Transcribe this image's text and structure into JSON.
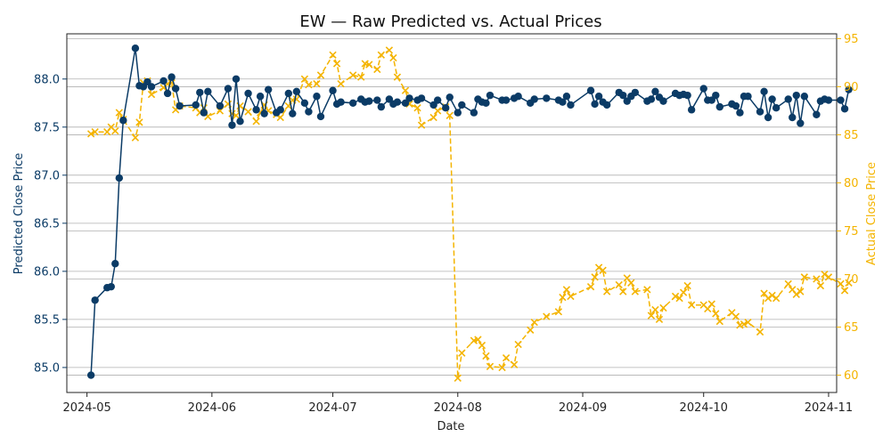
{
  "chart_data": {
    "type": "line",
    "title": "EW — Raw Predicted vs. Actual Prices",
    "xlabel": "Date",
    "x_ticks": [
      "2024-05",
      "2024-06",
      "2024-07",
      "2024-08",
      "2024-09",
      "2024-10",
      "2024-11"
    ],
    "x_tick_dates": [
      "2024-05-01",
      "2024-06-01",
      "2024-07-01",
      "2024-08-01",
      "2024-09-01",
      "2024-10-01",
      "2024-11-01"
    ],
    "xlim": [
      "2024-04-26",
      "2024-11-03"
    ],
    "left_axis": {
      "label": "Predicted Close Price",
      "ticks": [
        "85.0",
        "85.5",
        "86.0",
        "86.5",
        "87.0",
        "87.5",
        "88.0"
      ],
      "tick_values": [
        85.0,
        85.5,
        86.0,
        86.5,
        87.0,
        87.5,
        88.0
      ],
      "ylim": [
        84.74,
        88.47
      ],
      "color": "#0b3b66"
    },
    "right_axis": {
      "label": "Actual Close Price",
      "ticks": [
        "60",
        "65",
        "70",
        "75",
        "80",
        "85",
        "90",
        "95"
      ],
      "tick_values": [
        60,
        65,
        70,
        75,
        80,
        85,
        90,
        95
      ],
      "ylim": [
        58.2,
        95.5
      ],
      "color": "#f4b400"
    },
    "grid": "horizontal",
    "series": [
      {
        "axis": "left",
        "marker": "circle",
        "linestyle": "solid",
        "color": "#0b3b66",
        "points": [
          [
            "2024-05-02",
            84.92
          ],
          [
            "2024-05-03",
            85.7
          ],
          [
            "2024-05-06",
            85.83
          ],
          [
            "2024-05-07",
            85.84
          ],
          [
            "2024-05-08",
            86.08
          ],
          [
            "2024-05-09",
            86.97
          ],
          [
            "2024-05-10",
            87.57
          ],
          [
            "2024-05-13",
            88.32
          ],
          [
            "2024-05-14",
            87.93
          ],
          [
            "2024-05-15",
            87.92
          ],
          [
            "2024-05-16",
            87.97
          ],
          [
            "2024-05-17",
            87.92
          ],
          [
            "2024-05-20",
            87.98
          ],
          [
            "2024-05-21",
            87.85
          ],
          [
            "2024-05-22",
            88.02
          ],
          [
            "2024-05-23",
            87.9
          ],
          [
            "2024-05-24",
            87.72
          ],
          [
            "2024-05-28",
            87.73
          ],
          [
            "2024-05-29",
            87.86
          ],
          [
            "2024-05-30",
            87.65
          ],
          [
            "2024-05-31",
            87.87
          ],
          [
            "2024-06-03",
            87.72
          ],
          [
            "2024-06-05",
            87.9
          ],
          [
            "2024-06-06",
            87.52
          ],
          [
            "2024-06-07",
            88.0
          ],
          [
            "2024-06-08",
            87.56
          ],
          [
            "2024-06-10",
            87.85
          ],
          [
            "2024-06-12",
            87.68
          ],
          [
            "2024-06-13",
            87.82
          ],
          [
            "2024-06-14",
            87.64
          ],
          [
            "2024-06-15",
            87.89
          ],
          [
            "2024-06-17",
            87.65
          ],
          [
            "2024-06-18",
            87.68
          ],
          [
            "2024-06-20",
            87.85
          ],
          [
            "2024-06-21",
            87.64
          ],
          [
            "2024-06-22",
            87.87
          ],
          [
            "2024-06-24",
            87.75
          ],
          [
            "2024-06-25",
            87.66
          ],
          [
            "2024-06-27",
            87.82
          ],
          [
            "2024-06-28",
            87.61
          ],
          [
            "2024-07-01",
            87.88
          ],
          [
            "2024-07-02",
            87.74
          ],
          [
            "2024-07-03",
            87.76
          ],
          [
            "2024-07-06",
            87.75
          ],
          [
            "2024-07-08",
            87.79
          ],
          [
            "2024-07-09",
            87.76
          ],
          [
            "2024-07-10",
            87.77
          ],
          [
            "2024-07-12",
            87.78
          ],
          [
            "2024-07-13",
            87.71
          ],
          [
            "2024-07-15",
            87.79
          ],
          [
            "2024-07-16",
            87.74
          ],
          [
            "2024-07-17",
            87.76
          ],
          [
            "2024-07-19",
            87.75
          ],
          [
            "2024-07-20",
            87.8
          ],
          [
            "2024-07-22",
            87.78
          ],
          [
            "2024-07-23",
            87.8
          ],
          [
            "2024-07-26",
            87.73
          ],
          [
            "2024-07-27",
            87.78
          ],
          [
            "2024-07-29",
            87.7
          ],
          [
            "2024-07-30",
            87.81
          ],
          [
            "2024-08-01",
            87.65
          ],
          [
            "2024-08-02",
            87.73
          ],
          [
            "2024-08-05",
            87.65
          ],
          [
            "2024-08-06",
            87.79
          ],
          [
            "2024-08-07",
            87.76
          ],
          [
            "2024-08-08",
            87.75
          ],
          [
            "2024-08-09",
            87.83
          ],
          [
            "2024-08-12",
            87.78
          ],
          [
            "2024-08-13",
            87.78
          ],
          [
            "2024-08-15",
            87.8
          ],
          [
            "2024-08-16",
            87.82
          ],
          [
            "2024-08-19",
            87.75
          ],
          [
            "2024-08-20",
            87.79
          ],
          [
            "2024-08-23",
            87.8
          ],
          [
            "2024-08-26",
            87.78
          ],
          [
            "2024-08-27",
            87.76
          ],
          [
            "2024-08-28",
            87.82
          ],
          [
            "2024-08-29",
            87.73
          ],
          [
            "2024-09-03",
            87.88
          ],
          [
            "2024-09-04",
            87.74
          ],
          [
            "2024-09-05",
            87.82
          ],
          [
            "2024-09-06",
            87.76
          ],
          [
            "2024-09-07",
            87.73
          ],
          [
            "2024-09-10",
            87.86
          ],
          [
            "2024-09-11",
            87.83
          ],
          [
            "2024-09-12",
            87.77
          ],
          [
            "2024-09-13",
            87.82
          ],
          [
            "2024-09-14",
            87.86
          ],
          [
            "2024-09-17",
            87.77
          ],
          [
            "2024-09-18",
            87.79
          ],
          [
            "2024-09-19",
            87.87
          ],
          [
            "2024-09-20",
            87.81
          ],
          [
            "2024-09-21",
            87.77
          ],
          [
            "2024-09-24",
            87.85
          ],
          [
            "2024-09-25",
            87.83
          ],
          [
            "2024-09-26",
            87.84
          ],
          [
            "2024-09-27",
            87.83
          ],
          [
            "2024-09-28",
            87.68
          ],
          [
            "2024-10-01",
            87.9
          ],
          [
            "2024-10-02",
            87.78
          ],
          [
            "2024-10-03",
            87.78
          ],
          [
            "2024-10-04",
            87.83
          ],
          [
            "2024-10-05",
            87.71
          ],
          [
            "2024-10-08",
            87.74
          ],
          [
            "2024-10-09",
            87.72
          ],
          [
            "2024-10-10",
            87.65
          ],
          [
            "2024-10-11",
            87.82
          ],
          [
            "2024-10-12",
            87.82
          ],
          [
            "2024-10-15",
            87.66
          ],
          [
            "2024-10-16",
            87.87
          ],
          [
            "2024-10-17",
            87.6
          ],
          [
            "2024-10-18",
            87.79
          ],
          [
            "2024-10-19",
            87.7
          ],
          [
            "2024-10-22",
            87.79
          ],
          [
            "2024-10-23",
            87.6
          ],
          [
            "2024-10-24",
            87.83
          ],
          [
            "2024-10-25",
            87.54
          ],
          [
            "2024-10-26",
            87.82
          ],
          [
            "2024-10-29",
            87.63
          ],
          [
            "2024-10-30",
            87.77
          ],
          [
            "2024-10-31",
            87.79
          ],
          [
            "2024-11-01",
            87.78
          ],
          [
            "2024-11-04",
            87.78
          ],
          [
            "2024-11-05",
            87.69
          ],
          [
            "2024-11-06",
            87.89
          ]
        ]
      },
      {
        "axis": "right",
        "marker": "x",
        "linestyle": "dashed",
        "color": "#f4b400",
        "points": [
          [
            "2024-05-02",
            85.1
          ],
          [
            "2024-05-03",
            85.3
          ],
          [
            "2024-05-06",
            85.3
          ],
          [
            "2024-05-07",
            85.8
          ],
          [
            "2024-05-08",
            85.4
          ],
          [
            "2024-05-09",
            87.3
          ],
          [
            "2024-05-10",
            86.6
          ],
          [
            "2024-05-13",
            84.7
          ],
          [
            "2024-05-14",
            86.3
          ],
          [
            "2024-05-15",
            90.4
          ],
          [
            "2024-05-16",
            90.6
          ],
          [
            "2024-05-17",
            89.2
          ],
          [
            "2024-05-20",
            89.9
          ],
          [
            "2024-05-21",
            90.3
          ],
          [
            "2024-05-22",
            90.4
          ],
          [
            "2024-05-23",
            87.6
          ],
          [
            "2024-05-24",
            88.0
          ],
          [
            "2024-05-28",
            87.8
          ],
          [
            "2024-05-29",
            87.3
          ],
          [
            "2024-05-30",
            87.8
          ],
          [
            "2024-05-31",
            86.9
          ],
          [
            "2024-06-03",
            87.5
          ],
          [
            "2024-06-05",
            88.2
          ],
          [
            "2024-06-06",
            87.2
          ],
          [
            "2024-06-07",
            87.0
          ],
          [
            "2024-06-08",
            88.0
          ],
          [
            "2024-06-10",
            87.4
          ],
          [
            "2024-06-12",
            86.4
          ],
          [
            "2024-06-13",
            87.3
          ],
          [
            "2024-06-14",
            88.1
          ],
          [
            "2024-06-15",
            87.5
          ],
          [
            "2024-06-17",
            87.1
          ],
          [
            "2024-06-18",
            86.8
          ],
          [
            "2024-06-20",
            88.0
          ],
          [
            "2024-06-21",
            88.6
          ],
          [
            "2024-06-22",
            88.7
          ],
          [
            "2024-06-24",
            90.8
          ],
          [
            "2024-06-25",
            90.2
          ],
          [
            "2024-06-27",
            90.3
          ],
          [
            "2024-06-28",
            91.2
          ],
          [
            "2024-07-01",
            93.3
          ],
          [
            "2024-07-02",
            92.4
          ],
          [
            "2024-07-03",
            90.3
          ],
          [
            "2024-07-06",
            91.2
          ],
          [
            "2024-07-08",
            91.0
          ],
          [
            "2024-07-09",
            92.4
          ],
          [
            "2024-07-10",
            92.3
          ],
          [
            "2024-07-12",
            91.8
          ],
          [
            "2024-07-13",
            93.3
          ],
          [
            "2024-07-15",
            93.8
          ],
          [
            "2024-07-16",
            93.0
          ],
          [
            "2024-07-17",
            91.0
          ],
          [
            "2024-07-19",
            89.6
          ],
          [
            "2024-07-20",
            88.2
          ],
          [
            "2024-07-22",
            87.8
          ],
          [
            "2024-07-23",
            86.0
          ],
          [
            "2024-07-26",
            86.8
          ],
          [
            "2024-07-27",
            87.5
          ],
          [
            "2024-07-29",
            87.9
          ],
          [
            "2024-07-30",
            87.0
          ],
          [
            "2024-08-01",
            59.7
          ],
          [
            "2024-08-02",
            62.3
          ],
          [
            "2024-08-05",
            63.6
          ],
          [
            "2024-08-06",
            63.7
          ],
          [
            "2024-08-07",
            63.1
          ],
          [
            "2024-08-08",
            62.0
          ],
          [
            "2024-08-09",
            60.9
          ],
          [
            "2024-08-12",
            60.8
          ],
          [
            "2024-08-13",
            61.8
          ],
          [
            "2024-08-15",
            61.1
          ],
          [
            "2024-08-16",
            63.2
          ],
          [
            "2024-08-19",
            64.7
          ],
          [
            "2024-08-20",
            65.5
          ],
          [
            "2024-08-23",
            66.1
          ],
          [
            "2024-08-26",
            66.6
          ],
          [
            "2024-08-27",
            68.1
          ],
          [
            "2024-08-28",
            68.9
          ],
          [
            "2024-08-29",
            68.2
          ],
          [
            "2024-09-03",
            69.2
          ],
          [
            "2024-09-04",
            70.2
          ],
          [
            "2024-09-05",
            71.2
          ],
          [
            "2024-09-06",
            70.9
          ],
          [
            "2024-09-07",
            68.7
          ],
          [
            "2024-09-10",
            69.4
          ],
          [
            "2024-09-11",
            68.7
          ],
          [
            "2024-09-12",
            70.1
          ],
          [
            "2024-09-13",
            69.6
          ],
          [
            "2024-09-14",
            68.7
          ],
          [
            "2024-09-17",
            68.9
          ],
          [
            "2024-09-18",
            66.2
          ],
          [
            "2024-09-19",
            66.8
          ],
          [
            "2024-09-20",
            65.8
          ],
          [
            "2024-09-21",
            67.0
          ],
          [
            "2024-09-24",
            68.2
          ],
          [
            "2024-09-25",
            68.0
          ],
          [
            "2024-09-26",
            68.6
          ],
          [
            "2024-09-27",
            69.3
          ],
          [
            "2024-09-28",
            67.3
          ],
          [
            "2024-10-01",
            67.3
          ],
          [
            "2024-10-02",
            66.9
          ],
          [
            "2024-10-03",
            67.4
          ],
          [
            "2024-10-04",
            66.4
          ],
          [
            "2024-10-05",
            65.6
          ],
          [
            "2024-10-08",
            66.5
          ],
          [
            "2024-10-09",
            66.1
          ],
          [
            "2024-10-10",
            65.2
          ],
          [
            "2024-10-11",
            65.3
          ],
          [
            "2024-10-12",
            65.5
          ],
          [
            "2024-10-15",
            64.5
          ],
          [
            "2024-10-16",
            68.5
          ],
          [
            "2024-10-17",
            68.0
          ],
          [
            "2024-10-18",
            68.3
          ],
          [
            "2024-10-19",
            68.0
          ],
          [
            "2024-10-22",
            69.5
          ],
          [
            "2024-10-23",
            68.9
          ],
          [
            "2024-10-24",
            68.4
          ],
          [
            "2024-10-25",
            68.7
          ],
          [
            "2024-10-26",
            70.2
          ],
          [
            "2024-10-29",
            70.0
          ],
          [
            "2024-10-30",
            69.3
          ],
          [
            "2024-10-31",
            70.5
          ],
          [
            "2024-11-01",
            70.2
          ],
          [
            "2024-11-04",
            69.5
          ],
          [
            "2024-11-05",
            68.8
          ],
          [
            "2024-11-06",
            69.6
          ]
        ]
      }
    ]
  }
}
